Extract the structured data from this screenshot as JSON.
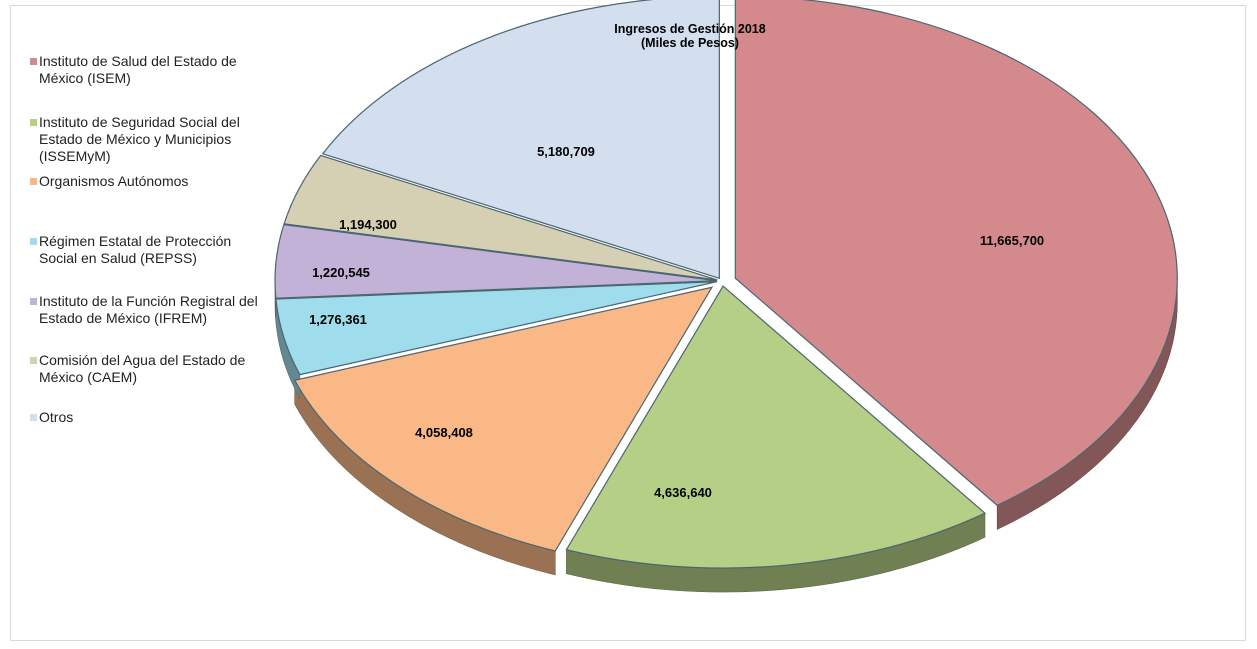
{
  "chart_data": {
    "type": "pie",
    "title_lines": [
      "Ingresos de Gestión 2018",
      "(Miles de Pesos)"
    ],
    "categories": [
      "Instituto de Salud del Estado de México (ISEM)",
      "Instituto de Seguridad Social del Estado de México y Municipios (ISSEMyM)",
      "Organismos Autónomos",
      "Régimen Estatal de Protección Social en Salud (REPSS)",
      "Instituto de la Función Registral del Estado de México (IFREM)",
      "Comisión del Agua del Estado de México (CAEM)",
      "Otros"
    ],
    "values": [
      11665700,
      4636640,
      4058408,
      1276361,
      1220545,
      1194300,
      5180709
    ],
    "value_labels": [
      "11,665,700",
      "4,636,640",
      "4,058,408",
      "1,276,361",
      "1,220,545",
      "1,194,300",
      "5,180,709"
    ],
    "colors": [
      "#d48a8c",
      "#b5cf86",
      "#f9b886",
      "#9fdcec",
      "#c3b2d8",
      "#d5cfb3",
      "#d3deef"
    ],
    "legend_position": "left"
  }
}
